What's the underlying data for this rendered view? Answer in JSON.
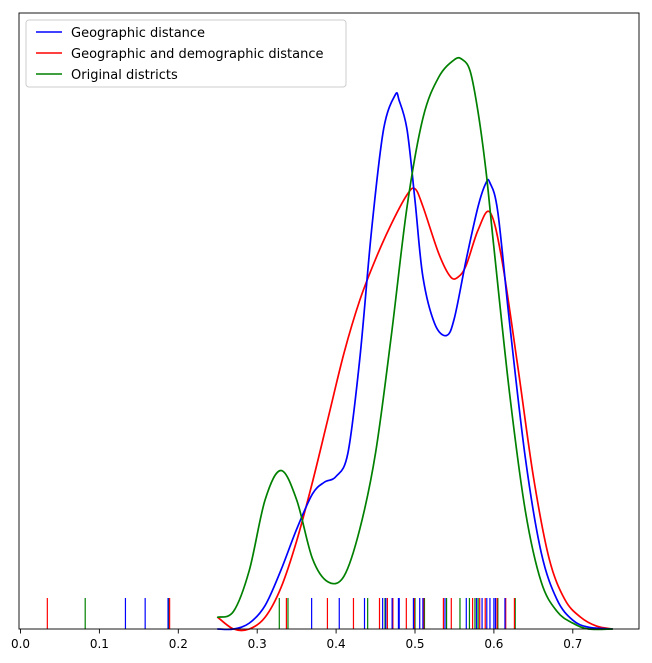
{
  "colors": {
    "geographic": "#0000ff",
    "geo_demo": "#ff0000",
    "original": "#008000"
  },
  "chart_data": {
    "type": "line",
    "xlim": [
      -0.005,
      0.78
    ],
    "ylim": [
      0,
      1.0
    ],
    "grid": false,
    "legend_position": "top-left",
    "x_ticks": [
      0.0,
      0.1,
      0.2,
      0.3,
      0.4,
      0.5,
      0.6,
      0.7
    ],
    "x_tick_labels": [
      "0.0",
      "0.1",
      "0.2",
      "0.3",
      "0.4",
      "0.5",
      "0.6",
      "0.7"
    ],
    "series": [
      {
        "name": "Geographic distance",
        "color_key": "geographic",
        "x": [
          0.25,
          0.27,
          0.29,
          0.31,
          0.33,
          0.35,
          0.37,
          0.385,
          0.4,
          0.415,
          0.43,
          0.445,
          0.46,
          0.475,
          0.48,
          0.49,
          0.5,
          0.51,
          0.525,
          0.54,
          0.55,
          0.565,
          0.58,
          0.59,
          0.595,
          0.605,
          0.62,
          0.64,
          0.66,
          0.68,
          0.7,
          0.72,
          0.75
        ],
        "y": [
          0.0,
          0.0,
          0.01,
          0.04,
          0.1,
          0.17,
          0.23,
          0.25,
          0.26,
          0.3,
          0.46,
          0.68,
          0.85,
          0.91,
          0.9,
          0.85,
          0.73,
          0.6,
          0.52,
          0.5,
          0.53,
          0.63,
          0.72,
          0.76,
          0.76,
          0.71,
          0.52,
          0.29,
          0.13,
          0.05,
          0.015,
          0.003,
          0.0
        ]
      },
      {
        "name": "Geographic and demographic distance",
        "color_key": "geo_demo",
        "x": [
          0.25,
          0.27,
          0.29,
          0.31,
          0.33,
          0.35,
          0.37,
          0.39,
          0.41,
          0.43,
          0.45,
          0.47,
          0.49,
          0.5,
          0.51,
          0.53,
          0.545,
          0.555,
          0.565,
          0.58,
          0.595,
          0.61,
          0.63,
          0.65,
          0.67,
          0.69,
          0.71,
          0.73,
          0.75
        ],
        "y": [
          0.02,
          0.0,
          0.0,
          0.02,
          0.07,
          0.15,
          0.25,
          0.36,
          0.47,
          0.56,
          0.63,
          0.69,
          0.74,
          0.75,
          0.72,
          0.64,
          0.6,
          0.6,
          0.62,
          0.68,
          0.71,
          0.63,
          0.45,
          0.26,
          0.12,
          0.05,
          0.02,
          0.005,
          0.0
        ]
      },
      {
        "name": "Original districts",
        "color_key": "original",
        "x": [
          0.25,
          0.27,
          0.29,
          0.31,
          0.33,
          0.35,
          0.37,
          0.39,
          0.41,
          0.43,
          0.45,
          0.47,
          0.49,
          0.51,
          0.53,
          0.55,
          0.56,
          0.57,
          0.58,
          0.59,
          0.6,
          0.62,
          0.64,
          0.66,
          0.68,
          0.7,
          0.72,
          0.75
        ],
        "y": [
          0.02,
          0.03,
          0.1,
          0.22,
          0.27,
          0.22,
          0.12,
          0.08,
          0.09,
          0.17,
          0.3,
          0.5,
          0.72,
          0.87,
          0.94,
          0.97,
          0.97,
          0.95,
          0.88,
          0.78,
          0.65,
          0.4,
          0.2,
          0.08,
          0.03,
          0.01,
          0.0,
          0.0
        ]
      }
    ],
    "rug": {
      "geographic": [
        0.133,
        0.158,
        0.187,
        0.369,
        0.404,
        0.436,
        0.459,
        0.463,
        0.471,
        0.479,
        0.48,
        0.498,
        0.506,
        0.51,
        0.538,
        0.565,
        0.578,
        0.585,
        0.591,
        0.595,
        0.6,
        0.602,
        0.614
      ],
      "geo_demo": [
        0.034,
        0.189,
        0.337,
        0.389,
        0.422,
        0.455,
        0.465,
        0.472,
        0.489,
        0.499,
        0.511,
        0.536,
        0.546,
        0.573,
        0.582,
        0.589,
        0.604,
        0.615,
        0.626
      ],
      "original": [
        0.082,
        0.188,
        0.328,
        0.339,
        0.44,
        0.462,
        0.5,
        0.512,
        0.54,
        0.557,
        0.569,
        0.576,
        0.58,
        0.605,
        0.627
      ]
    }
  }
}
